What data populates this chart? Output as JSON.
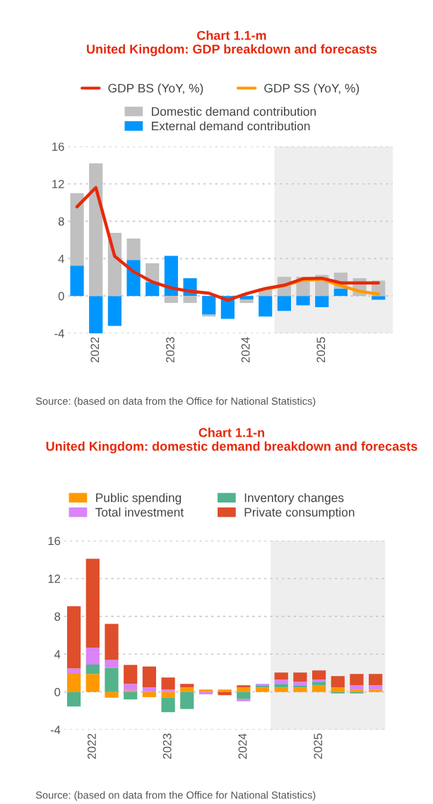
{
  "chart_data": [
    {
      "type": "bar",
      "title": "Chart 1.1-m",
      "subtitle": "United Kingdom: GDP breakdown and forecasts",
      "x": [
        2021.75,
        2022.0,
        2022.25,
        2022.5,
        2022.75,
        2023.0,
        2023.25,
        2023.5,
        2023.75,
        2024.0,
        2024.25,
        2024.5,
        2024.75,
        2025.0,
        2025.25,
        2025.5,
        2025.75
      ],
      "xlim": [
        2021.63,
        2025.94
      ],
      "xticks": [
        2022,
        2023,
        2024,
        2025
      ],
      "stacked": true,
      "ylim": [
        -4,
        16
      ],
      "yticks": [
        -4,
        0,
        4,
        8,
        12,
        16
      ],
      "grid": "y",
      "legend": "top",
      "series": [
        {
          "name": "External demand contribution",
          "type": "bar",
          "color": "#0096ff",
          "values": [
            3.25,
            -4.0,
            -3.2,
            3.85,
            1.5,
            4.3,
            1.9,
            -2.0,
            -2.45,
            -0.4,
            -2.2,
            -1.6,
            -1.0,
            -1.2,
            0.8,
            0,
            -0.4
          ]
        },
        {
          "name": "Domestic demand contribution",
          "type": "bar",
          "color": "#c0c0c0",
          "values": [
            7.75,
            14.2,
            6.75,
            2.3,
            2.0,
            -0.75,
            -0.75,
            -0.2,
            0,
            -0.35,
            0.8,
            2.05,
            2.05,
            2.25,
            1.7,
            1.9,
            1.65
          ]
        },
        {
          "name": "GDP SS (YoY, %)",
          "type": "line",
          "color": "#ff9900",
          "values": [
            null,
            null,
            null,
            null,
            null,
            null,
            null,
            null,
            null,
            null,
            0.75,
            1.1,
            1.7,
            1.8,
            1.1,
            0.5,
            0.2
          ]
        },
        {
          "name": "GDP BS (YoY, %)",
          "type": "line",
          "color": "#e8280a",
          "values": [
            9.55,
            11.6,
            4.25,
            2.6,
            1.5,
            0.85,
            0.5,
            0.3,
            -0.45,
            0.25,
            0.8,
            1.15,
            1.85,
            1.9,
            1.4,
            1.4,
            1.4
          ]
        }
      ],
      "bands": [
        {
          "axis": "x",
          "from": 2024.37,
          "to": 2025.94,
          "color": "#eeeeee"
        }
      ],
      "annotations": [
        "Source: (based on data from the Office for National Statistics)"
      ]
    },
    {
      "type": "bar",
      "stacked": true,
      "title": "Chart 1.1-n",
      "subtitle": "United Kingdom: domestic demand breakdown and forecasts",
      "x": [
        2021.75,
        2022.0,
        2022.25,
        2022.5,
        2022.75,
        2023.0,
        2023.25,
        2023.5,
        2023.75,
        2024.0,
        2024.25,
        2024.5,
        2024.75,
        2025.0,
        2025.25,
        2025.5,
        2025.75
      ],
      "xlim": [
        2021.62,
        2025.88
      ],
      "xticks": [
        2022,
        2023,
        2024,
        2025
      ],
      "ylim": [
        -4,
        16
      ],
      "yticks": [
        -4,
        0,
        4,
        8,
        12,
        16
      ],
      "grid": "y",
      "legend": "top",
      "series": [
        {
          "name": "Public spending",
          "color": "#ff9900",
          "values": [
            2.0,
            1.9,
            -0.6,
            0.15,
            -0.55,
            -0.6,
            0.48,
            0.25,
            0.25,
            0.48,
            0.48,
            0.48,
            0.48,
            0.7,
            0.48,
            0.25,
            0.25
          ]
        },
        {
          "name": "Inventory changes",
          "color": "#52b38c",
          "values": [
            -1.55,
            1.0,
            2.55,
            -0.8,
            0,
            -1.55,
            -1.8,
            0,
            0,
            -0.75,
            0.22,
            0.38,
            0.22,
            0.38,
            -0.15,
            -0.15,
            0
          ]
        },
        {
          "name": "Total investment",
          "color": "#d984f7",
          "values": [
            0.48,
            1.8,
            0.83,
            0.7,
            0.48,
            0.25,
            0,
            -0.25,
            0,
            -0.23,
            0.15,
            0.45,
            0.38,
            0.22,
            0,
            0.45,
            0.45
          ]
        },
        {
          "name": "Private consumption",
          "color": "#de4e2b",
          "values": [
            6.6,
            9.4,
            3.83,
            2.0,
            2.2,
            1.28,
            0.37,
            0,
            -0.35,
            0.22,
            0,
            0.75,
            0.98,
            0.98,
            1.2,
            1.2,
            1.2
          ]
        }
      ],
      "bands": [
        {
          "axis": "x",
          "from": 2024.36,
          "to": 2025.88,
          "color": "#eeeeee"
        }
      ],
      "annotations": [
        "Source: (based on data from the Office for National Statistics)"
      ]
    }
  ]
}
